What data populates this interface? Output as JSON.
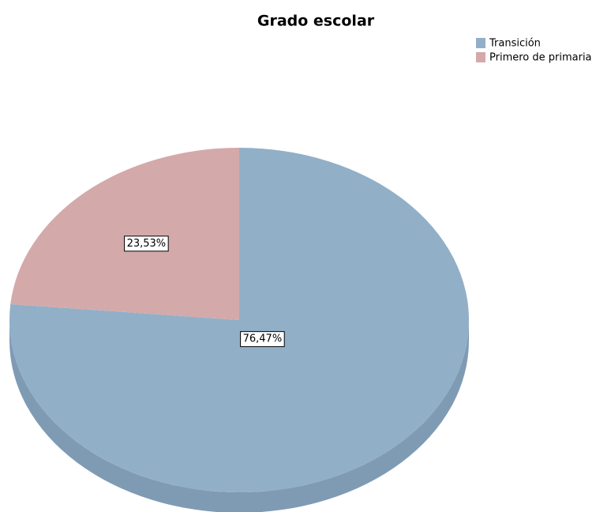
{
  "chart_data": {
    "type": "pie",
    "title": "Grado escolar",
    "categories": [
      "Transición",
      "Primero de primaria"
    ],
    "values": [
      76.47,
      23.53
    ],
    "value_labels": [
      "76,47%",
      "23,53%"
    ],
    "colors": [
      "#92afc8",
      "#d4a9aa"
    ],
    "legend": "top-right"
  }
}
